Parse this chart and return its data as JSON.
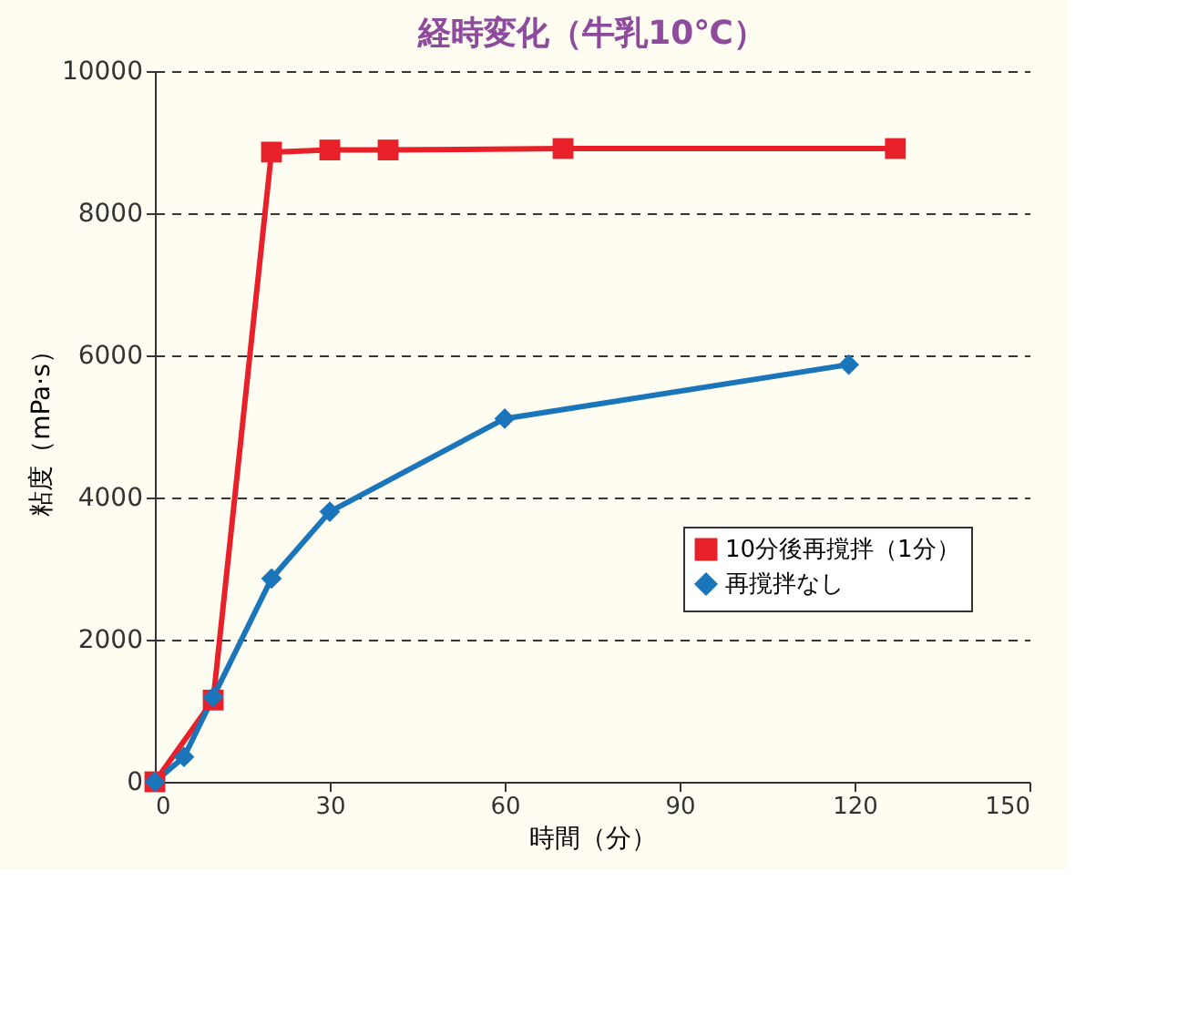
{
  "chart_data": {
    "type": "line",
    "title": "経時変化（牛乳10℃）",
    "xlabel": "時間（分）",
    "ylabel": "粘度（mPa·s）",
    "xlim": [
      0,
      150
    ],
    "xticks": [
      0,
      30,
      60,
      90,
      120,
      150
    ],
    "ylim": [
      0,
      10000
    ],
    "yticks": [
      0,
      2000,
      4000,
      6000,
      8000,
      10000
    ],
    "grid": "y",
    "legend": "right",
    "line_style": "solid",
    "series": [
      {
        "name": "10分後再撹拌（1分）",
        "color": "#e8202a",
        "marker": "square",
        "x": [
          0,
          10,
          20,
          30,
          40,
          70,
          127
        ],
        "values": [
          0,
          1150,
          8860,
          8890,
          8890,
          8910,
          8910
        ]
      },
      {
        "name": "再撹拌なし",
        "color": "#1a75bb",
        "marker": "diamond",
        "x": [
          0,
          5,
          10,
          20,
          30,
          60,
          119
        ],
        "values": [
          0,
          350,
          1190,
          2860,
          3800,
          5110,
          5870
        ]
      }
    ]
  }
}
